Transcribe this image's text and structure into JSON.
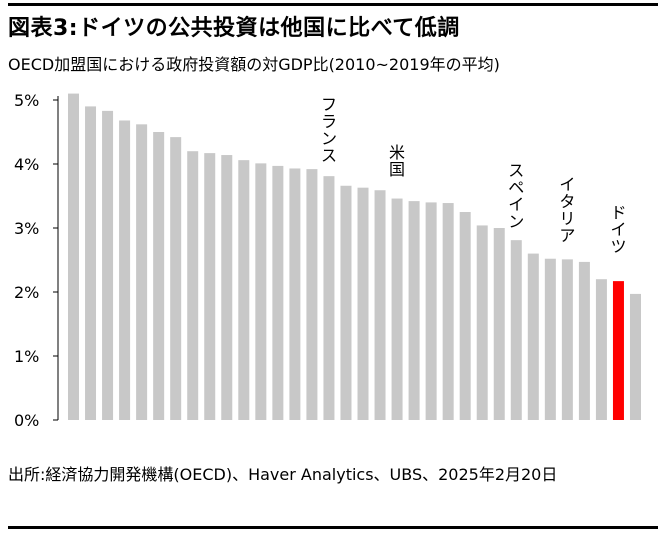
{
  "header": {
    "title": "図表3:ドイツの公共投資は他国に比べて低調",
    "subtitle": "OECD加盟国における政府投資額の対GDP比(2010~2019年の平均)"
  },
  "footer": {
    "source": "出所:経済協力開発機構(OECD)、Haver Analytics、UBS、2025年2月20日"
  },
  "colors": {
    "bar": "#c8c8c8",
    "highlight": "#ff0000",
    "axis": "#000000"
  },
  "chart_data": {
    "type": "bar",
    "title": "",
    "xlabel": "",
    "ylabel": "",
    "ylim": [
      0,
      5
    ],
    "yticks": [
      "0%",
      "1%",
      "2%",
      "3%",
      "4%",
      "5%"
    ],
    "grid": false,
    "values": [
      5.1,
      4.9,
      4.83,
      4.68,
      4.62,
      4.5,
      4.42,
      4.2,
      4.17,
      4.14,
      4.06,
      4.01,
      3.97,
      3.93,
      3.92,
      3.81,
      3.66,
      3.63,
      3.59,
      3.46,
      3.42,
      3.4,
      3.39,
      3.25,
      3.04,
      3.0,
      2.81,
      2.6,
      2.52,
      2.51,
      2.47,
      2.2,
      2.17,
      1.97
    ],
    "highlight_index": 32,
    "annotations": [
      {
        "text": "フランス",
        "index": 15
      },
      {
        "text": "米国",
        "index": 19
      },
      {
        "text": "スペイン",
        "index": 26
      },
      {
        "text": "イタリア",
        "index": 29
      },
      {
        "text": "ドイツ",
        "index": 32
      }
    ]
  }
}
